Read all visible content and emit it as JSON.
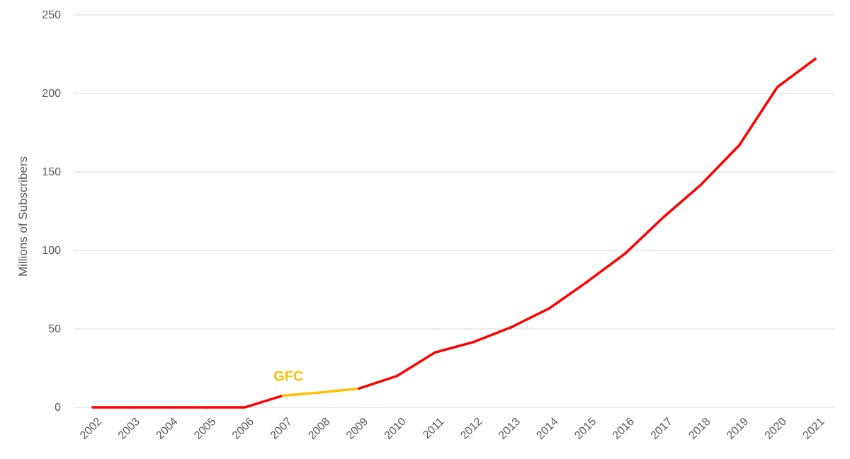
{
  "chart_data": {
    "type": "line",
    "title": "",
    "xlabel": "",
    "ylabel": "Millions of Subscribers",
    "ylim": [
      0,
      250
    ],
    "yticks": [
      0,
      50,
      100,
      150,
      200,
      250
    ],
    "grid": true,
    "legend": "none",
    "categories": [
      "2002",
      "2003",
      "2004",
      "2005",
      "2006",
      "2007",
      "2008",
      "2009",
      "2010",
      "2011",
      "2012",
      "2013",
      "2014",
      "2015",
      "2016",
      "2017",
      "2018",
      "2019",
      "2020",
      "2021"
    ],
    "series": [
      {
        "values": [
          0,
          0,
          0,
          0,
          0,
          7.5,
          9.5,
          12,
          20,
          35,
          41.5,
          51,
          63,
          80,
          98,
          121,
          142,
          167,
          204,
          222
        ],
        "color": "#ff0000",
        "highlight": {
          "from": "2007",
          "to": "2009",
          "color": "#ffc000"
        }
      }
    ],
    "annotations": [
      {
        "text": "GFC",
        "x": "2007",
        "y": 17,
        "color": "#ffc000"
      }
    ]
  }
}
